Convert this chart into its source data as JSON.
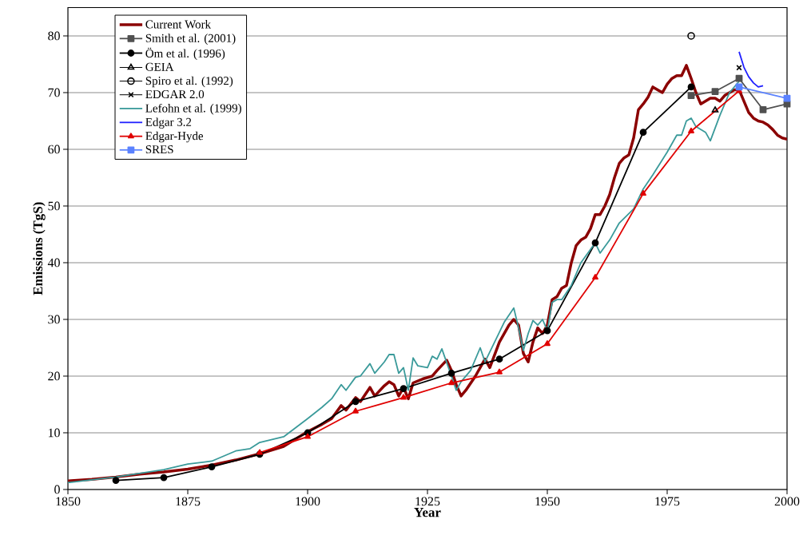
{
  "chart_data": {
    "type": "line",
    "xlabel": "Year",
    "ylabel": "Emissions (TgS)",
    "xlim": [
      1850,
      2000
    ],
    "xticks": [
      1850,
      1875,
      1900,
      1925,
      1950,
      1975,
      2000
    ],
    "ylim": [
      0,
      85
    ],
    "yticks": [
      0,
      10,
      20,
      30,
      40,
      50,
      60,
      70,
      80
    ],
    "grid": "y",
    "legend": "top left",
    "series": [
      {
        "name": "Current Work",
        "color": "#8b0000",
        "marker": "none",
        "x": [
          1850,
          1855,
          1860,
          1865,
          1870,
          1875,
          1880,
          1885,
          1890,
          1895,
          1900,
          1903,
          1905,
          1907,
          1908,
          1910,
          1911,
          1913,
          1914,
          1916,
          1917,
          1918,
          1919,
          1920,
          1921,
          1922,
          1924,
          1926,
          1927,
          1929,
          1930,
          1931,
          1932,
          1933,
          1935,
          1937,
          1938,
          1940,
          1942,
          1943,
          1944,
          1945,
          1946,
          1947,
          1948,
          1949,
          1950,
          1951,
          1952,
          1953,
          1954,
          1955,
          1956,
          1957,
          1958,
          1959,
          1960,
          1961,
          1962,
          1963,
          1964,
          1965,
          1966,
          1967,
          1968,
          1969,
          1970,
          1971,
          1972,
          1973,
          1974,
          1975,
          1976,
          1977,
          1978,
          1979,
          1980,
          1981,
          1982,
          1983,
          1984,
          1985,
          1986,
          1987,
          1988,
          1989,
          1990,
          1991,
          1992,
          1993,
          1994,
          1995,
          1996,
          1997,
          1998,
          1999,
          2000
        ],
        "values": [
          1.5,
          1.8,
          2.2,
          2.7,
          3.1,
          3.6,
          4.3,
          5.2,
          6.3,
          7.6,
          10.2,
          11.5,
          12.5,
          14.8,
          14.0,
          16.2,
          15.5,
          18.0,
          16.5,
          18.3,
          19.0,
          18.5,
          16.5,
          18.0,
          16.0,
          18.8,
          19.5,
          20.0,
          21.0,
          22.8,
          21.0,
          18.5,
          16.5,
          17.5,
          20.0,
          23.0,
          21.5,
          26.0,
          29.0,
          30.0,
          29.0,
          24.0,
          22.5,
          26.0,
          28.5,
          27.5,
          29.0,
          33.5,
          34.0,
          35.5,
          36.0,
          40.0,
          43.0,
          44.0,
          44.5,
          46.0,
          48.5,
          48.5,
          50.0,
          52.0,
          55.0,
          57.5,
          58.5,
          59.0,
          62.0,
          67.0,
          68.0,
          69.2,
          71.0,
          70.5,
          70.0,
          71.5,
          72.5,
          73.0,
          73.0,
          74.8,
          72.5,
          70.0,
          68.0,
          68.5,
          69.0,
          69.0,
          68.5,
          69.5,
          70.0,
          70.5,
          70.5,
          68.5,
          66.5,
          65.5,
          65.0,
          64.8,
          64.3,
          63.5,
          62.5,
          62.0,
          61.8
        ]
      },
      {
        "name": "Smith et al. (2001)",
        "color": "#505050",
        "marker": "square",
        "x": [
          1980,
          1985,
          1990,
          1995,
          2000
        ],
        "values": [
          69.5,
          70.2,
          72.5,
          67.0,
          68.0
        ]
      },
      {
        "name": "Öm et al. (1996)",
        "color": "#000000",
        "marker": "circle",
        "x": [
          1860,
          1870,
          1880,
          1890,
          1900,
          1910,
          1920,
          1930,
          1940,
          1950,
          1960,
          1970,
          1980
        ],
        "values": [
          1.6,
          2.1,
          4.0,
          6.2,
          10.0,
          15.5,
          17.8,
          20.5,
          23.0,
          28.0,
          43.5,
          63.0,
          71.0
        ]
      },
      {
        "name": "GEIA",
        "type": "scatter",
        "color": "#000000",
        "marker": "triangle",
        "x": [
          1985
        ],
        "values": [
          66.9
        ]
      },
      {
        "name": "Spiro et al. (1992)",
        "type": "scatter",
        "color": "#000000",
        "marker": "circle",
        "x": [
          1980
        ],
        "values": [
          80.0
        ]
      },
      {
        "name": "EDGAR 2.0",
        "type": "scatter",
        "color": "#000000",
        "marker": "cross",
        "x": [
          1990
        ],
        "values": [
          74.4
        ]
      },
      {
        "name": "Lefohn et al. (1999)",
        "color": "#3a9a9a",
        "marker": "none",
        "x": [
          1850,
          1860,
          1870,
          1875,
          1880,
          1885,
          1888,
          1890,
          1895,
          1900,
          1903,
          1905,
          1907,
          1908,
          1910,
          1911,
          1913,
          1914,
          1916,
          1917,
          1918,
          1919,
          1920,
          1921,
          1922,
          1923,
          1925,
          1926,
          1927,
          1928,
          1930,
          1931,
          1932,
          1934,
          1936,
          1937,
          1939,
          1941,
          1943,
          1944,
          1945,
          1946,
          1947,
          1948,
          1949,
          1950,
          1951,
          1952,
          1953,
          1955,
          1957,
          1960,
          1961,
          1963,
          1965,
          1968,
          1970,
          1972,
          1975,
          1977,
          1978,
          1979,
          1980,
          1981,
          1983,
          1984,
          1986,
          1988,
          1990
        ],
        "values": [
          1.2,
          2.2,
          3.5,
          4.5,
          5.0,
          6.8,
          7.2,
          8.3,
          9.3,
          12.5,
          14.5,
          16.0,
          18.5,
          17.5,
          19.8,
          20.0,
          22.2,
          20.5,
          22.5,
          23.8,
          23.8,
          20.5,
          21.5,
          17.5,
          23.2,
          21.8,
          21.5,
          23.5,
          23.0,
          24.8,
          20.0,
          17.5,
          19.0,
          21.0,
          25.0,
          22.5,
          26.0,
          29.5,
          32.0,
          28.5,
          24.5,
          27.5,
          29.8,
          29.0,
          30.0,
          28.0,
          33.0,
          33.5,
          33.5,
          36.0,
          40.0,
          43.5,
          41.7,
          44.0,
          47.0,
          49.5,
          53.0,
          55.5,
          59.5,
          62.5,
          62.5,
          65.0,
          65.5,
          64.0,
          63.0,
          61.5,
          66.0,
          70.0,
          72.0
        ]
      },
      {
        "name": "Edgar 3.2",
        "color": "#2020ff",
        "marker": "none",
        "x": [
          1990,
          1991,
          1992,
          1993,
          1994,
          1995
        ],
        "values": [
          77.2,
          74.5,
          72.8,
          71.7,
          71.0,
          71.2
        ]
      },
      {
        "name": "Edgar-Hyde",
        "color": "#e00000",
        "marker": "triangle",
        "x": [
          1890,
          1900,
          1910,
          1920,
          1930,
          1940,
          1950,
          1960,
          1970,
          1980,
          1990
        ],
        "values": [
          6.5,
          9.3,
          13.8,
          16.2,
          18.8,
          20.7,
          25.7,
          37.4,
          52.2,
          63.2,
          70.3
        ]
      },
      {
        "name": "SRES",
        "color": "#5b82ff",
        "marker": "square",
        "x": [
          1990,
          2000
        ],
        "values": [
          71.0,
          69.0
        ]
      }
    ]
  }
}
